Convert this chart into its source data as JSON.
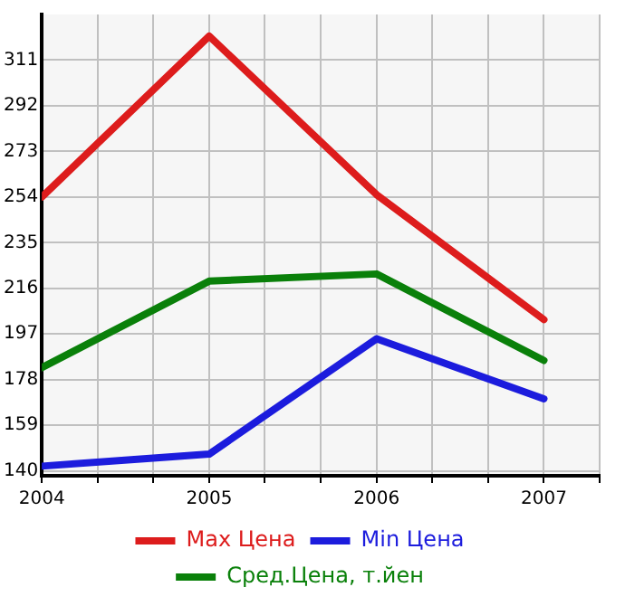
{
  "chart_data": {
    "type": "line",
    "x": [
      2004,
      2005,
      2006,
      2007
    ],
    "series": [
      {
        "name": "Max Цена",
        "color": "#dd1c1c",
        "values": [
          254,
          321,
          255,
          203
        ]
      },
      {
        "name": "Min Цена",
        "color": "#1c1cdd",
        "values": [
          142,
          147,
          195,
          170
        ]
      },
      {
        "name": "Сред.Цена, т.йен",
        "color": "#0a800a",
        "values": [
          183,
          219,
          222,
          186
        ]
      }
    ],
    "xlim": [
      2004,
      2007.333
    ],
    "xticks": [
      2004,
      {
        "value": 2004.333,
        "label": null
      },
      {
        "value": 2004.667,
        "label": null
      },
      2005,
      {
        "value": 2005.333,
        "label": null
      },
      {
        "value": 2005.667,
        "label": null
      },
      2006,
      {
        "value": 2006.333,
        "label": null
      },
      {
        "value": 2006.667,
        "label": null
      },
      2007,
      {
        "value": 2007.333,
        "label": null
      }
    ],
    "ylim": [
      138,
      330
    ],
    "yticks": [
      140,
      159,
      178,
      197,
      216,
      235,
      254,
      273,
      292,
      311
    ],
    "grid": true,
    "legend": "bottom",
    "marker": "none",
    "line_style": "solid"
  }
}
